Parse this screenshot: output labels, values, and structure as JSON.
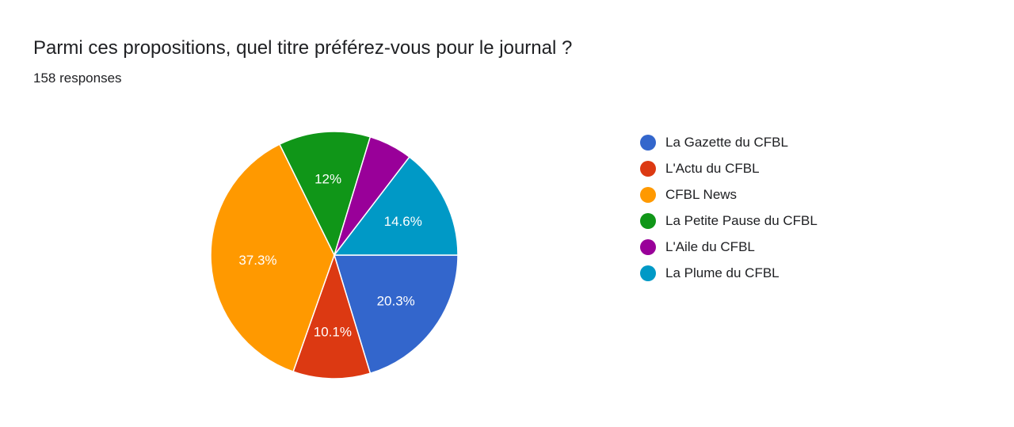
{
  "title": "Parmi ces propositions, quel titre préférez-vous pour le journal ?",
  "subtitle": "158 responses",
  "chart_data": {
    "type": "pie",
    "title": "Parmi ces propositions, quel titre préférez-vous pour le journal ?",
    "subtitle": "158 responses",
    "legend_position": "right",
    "slices": [
      {
        "label": "La Gazette du CFBL",
        "value": 20.3,
        "display": "20.3%",
        "color": "#3366cc"
      },
      {
        "label": "L'Actu du CFBL",
        "value": 10.1,
        "display": "10.1%",
        "color": "#dc3912"
      },
      {
        "label": "CFBL News",
        "value": 37.3,
        "display": "37.3%",
        "color": "#ff9900"
      },
      {
        "label": "La Petite Pause du CFBL",
        "value": 12.0,
        "display": "12%",
        "color": "#109618"
      },
      {
        "label": "L'Aile du CFBL",
        "value": 5.7,
        "display": "",
        "color": "#990099"
      },
      {
        "label": "La Plume du CFBL",
        "value": 14.6,
        "display": "14.6%",
        "color": "#0099c6"
      }
    ]
  }
}
